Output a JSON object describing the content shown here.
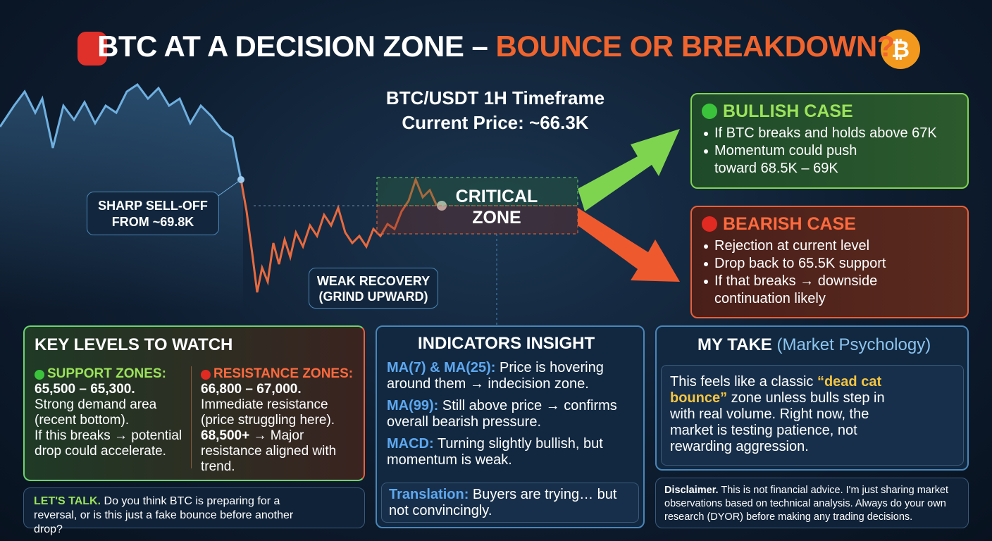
{
  "header": {
    "title": "BTC AT A DECISION ZONE – ",
    "title_highlight": "BOUNCE OR BREAKDOWN?",
    "subtitle": [
      "BTC/USDT 1H Timeframe",
      "Current Price: ~66.3K"
    ]
  },
  "annotations": {
    "sell_off": [
      "SHARP SELL-OFF",
      "FROM ~69.8K"
    ],
    "critical_zone": [
      "CRITICAL",
      "ZONE"
    ],
    "weak_recovery": [
      "WEAK RECOVERY",
      "(GRIND UPWARD)"
    ]
  },
  "bullish": {
    "title": "BULLISH CASE",
    "bullets": [
      "If BTC breaks and holds above 67K",
      "Momentum could push toward 68.5K – 69K"
    ]
  },
  "bearish": {
    "title": "BEARISH CASE",
    "bullets": [
      "Rejection at current level",
      "Drop back to 65.5K support",
      "If that breaks → downside continuation likely"
    ]
  },
  "key_levels": {
    "title": "KEY LEVELS TO WATCH",
    "support": {
      "heading": "SUPPORT ZONES:",
      "range": "65,500 – 65,300.",
      "lines": [
        "Strong demand area (recent bottom).",
        "If this breaks → potential drop could accelerate."
      ]
    },
    "resistance": {
      "heading": "RESISTANCE ZONES:",
      "range": "66,800 – 67,000.",
      "lines": [
        "Immediate resistance (price struggling here)."
      ],
      "major": "68,500+",
      "major_text": " → Major resistance aligned with trend."
    }
  },
  "indicators": {
    "title": "INDICATORS INSIGHT",
    "items": [
      {
        "label": "MA(7) & MA(25):",
        "text": " Price is hovering around them → indecision zone."
      },
      {
        "label": "MA(99):",
        "text": " Still above price → confirms overall bearish pressure."
      },
      {
        "label": "MACD:",
        "text": " Turning slightly bullish, but momentum is weak."
      }
    ],
    "translation": {
      "label": "Translation:",
      "text": " Buyers are trying… but not convincingly."
    }
  },
  "my_take": {
    "title": "MY TAKE",
    "subtitle": "(Market Psychology)",
    "text_before": "This feels like a classic ",
    "highlight": "“dead cat bounce”",
    "text_after": " zone unless bulls step in with real volume. Right now, the market is testing patience, not rewarding aggression."
  },
  "lets_talk": {
    "label": "LET'S TALK.",
    "text": " Do you think BTC is preparing for a reversal, or is this just a fake bounce before another drop?"
  },
  "disclaimer": {
    "label": "Disclaimer.",
    "text": " This is not financial advice. I'm just sharing market observations based on technical analysis. Always do your own research (DYOR) before making any trading decisions."
  }
}
